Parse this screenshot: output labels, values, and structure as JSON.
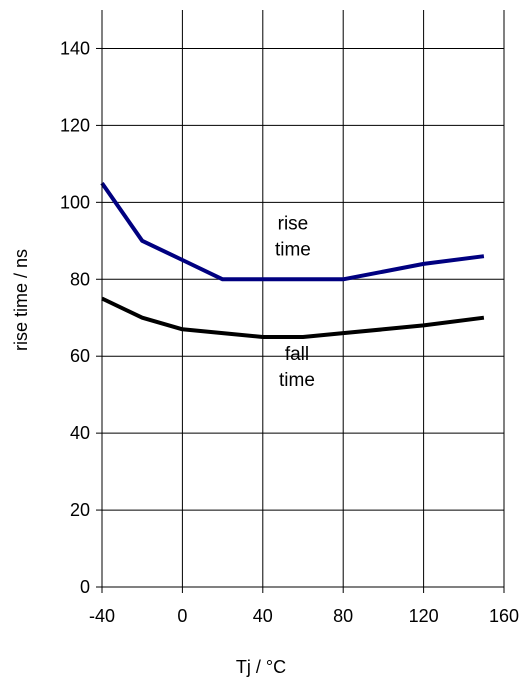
{
  "chart_data": {
    "type": "line",
    "title": "",
    "xlabel": "Tj / °C",
    "ylabel": "rise time / ns",
    "xlim": [
      -40,
      160
    ],
    "ylim": [
      0,
      150
    ],
    "xticks": [
      -40,
      0,
      40,
      80,
      120,
      160
    ],
    "yticks": [
      0,
      20,
      40,
      60,
      80,
      100,
      120,
      140
    ],
    "grid": true,
    "legend": "none",
    "series": [
      {
        "color": "#000080",
        "x": [
          -40,
          -20,
          0,
          20,
          40,
          60,
          80,
          100,
          120,
          150
        ],
        "y": [
          105,
          90,
          85,
          80,
          80,
          80,
          80,
          82,
          84,
          86
        ]
      },
      {
        "color": "#000000",
        "x": [
          -40,
          -20,
          0,
          20,
          40,
          60,
          80,
          100,
          120,
          150
        ],
        "y": [
          75,
          70,
          67,
          66,
          65,
          65,
          66,
          67,
          68,
          70
        ]
      }
    ],
    "annotations": [
      {
        "lines": [
          "rise",
          "time"
        ],
        "x": 55,
        "y": 93
      },
      {
        "lines": [
          "fall",
          "time"
        ],
        "x": 57,
        "y": 59
      }
    ]
  }
}
